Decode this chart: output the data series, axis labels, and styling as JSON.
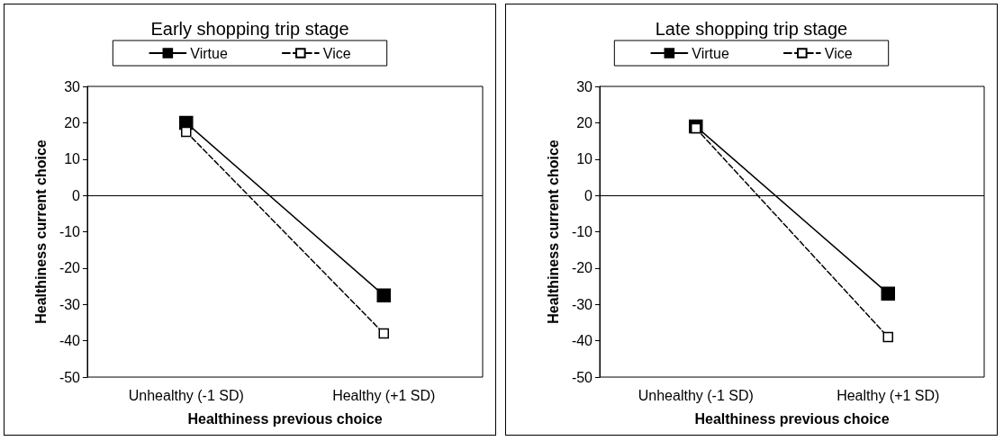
{
  "chart_data": [
    {
      "type": "line",
      "title": "Early shopping trip stage",
      "xlabel": "Healthiness previous choice",
      "ylabel": "Healthiness current choice",
      "categories": [
        "Unhealthy (-1 SD)",
        "Healthy (+1 SD)"
      ],
      "series": [
        {
          "name": "Virtue",
          "color": "#000000",
          "line_style": "solid",
          "values": [
            20,
            -27.5
          ]
        },
        {
          "name": "Vice",
          "color": "#000000",
          "line_style": "dashed",
          "values": [
            17.5,
            -38
          ]
        }
      ],
      "ylim": [
        -50,
        30
      ],
      "yticks": [
        -50,
        -40,
        -30,
        -20,
        -10,
        0,
        10,
        20,
        30
      ],
      "ref_lines": [
        {
          "axis": "y",
          "value": 0,
          "color": "#000000"
        }
      ],
      "legend": "top",
      "marker": "square",
      "grid": false
    },
    {
      "type": "line",
      "title": "Late shopping trip stage",
      "xlabel": "Healthiness previous choice",
      "ylabel": "Healthiness current choice",
      "categories": [
        "Unhealthy (-1 SD)",
        "Healthy (+1 SD)"
      ],
      "series": [
        {
          "name": "Virtue",
          "color": "#000000",
          "line_style": "solid",
          "values": [
            19,
            -27
          ]
        },
        {
          "name": "Vice",
          "color": "#000000",
          "line_style": "dashed",
          "values": [
            18.5,
            -39
          ]
        }
      ],
      "ylim": [
        -50,
        30
      ],
      "yticks": [
        -50,
        -40,
        -30,
        -20,
        -10,
        0,
        10,
        20,
        30
      ],
      "ref_lines": [
        {
          "axis": "y",
          "value": 0,
          "color": "#000000"
        }
      ],
      "legend": "top",
      "marker": "square",
      "grid": false
    }
  ]
}
